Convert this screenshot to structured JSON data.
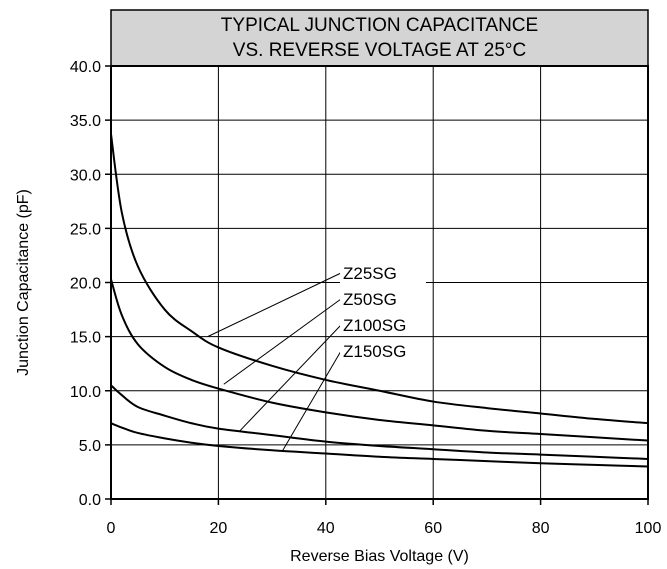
{
  "chart_data": {
    "type": "line",
    "title_lines": [
      "TYPICAL JUNCTION CAPACITANCE",
      "VS. REVERSE VOLTAGE AT 25°C"
    ],
    "xlabel": "Reverse Bias Voltage (V)",
    "ylabel": "Junction Capacitance (pF)",
    "xlim": [
      0,
      100
    ],
    "ylim": [
      0,
      40
    ],
    "x_ticks": [
      0,
      20,
      40,
      60,
      80,
      100
    ],
    "x_tick_labels": [
      "0",
      "20",
      "40",
      "60",
      "80",
      "100"
    ],
    "y_ticks": [
      0,
      5,
      10,
      15,
      20,
      25,
      30,
      35,
      40
    ],
    "y_tick_labels": [
      "0.0",
      "5.0",
      "10.0",
      "15.0",
      "20.0",
      "25.0",
      "30.0",
      "35.0",
      "40.0"
    ],
    "grid": true,
    "x": [
      0,
      2,
      5,
      10,
      15,
      20,
      30,
      40,
      50,
      60,
      70,
      80,
      90,
      100
    ],
    "series": [
      {
        "name": "Z25SG",
        "values": [
          33.7,
          26.5,
          21.5,
          17.5,
          15.5,
          14.0,
          12.3,
          11.0,
          10.0,
          9.0,
          8.4,
          7.9,
          7.4,
          7.0
        ]
      },
      {
        "name": "Z50SG",
        "values": [
          20.3,
          17.0,
          14.3,
          12.2,
          11.0,
          10.2,
          8.9,
          8.0,
          7.3,
          6.8,
          6.3,
          6.0,
          5.7,
          5.4
        ]
      },
      {
        "name": "Z100SG",
        "values": [
          10.5,
          9.6,
          8.5,
          7.7,
          7.0,
          6.5,
          5.9,
          5.3,
          4.9,
          4.6,
          4.3,
          4.1,
          3.9,
          3.7
        ]
      },
      {
        "name": "Z150SG",
        "values": [
          7.0,
          6.6,
          6.1,
          5.6,
          5.2,
          4.9,
          4.5,
          4.2,
          3.9,
          3.7,
          3.5,
          3.3,
          3.15,
          3.0
        ]
      }
    ],
    "annotations": [
      {
        "series": "Z25SG",
        "x": 18,
        "y": 15.0
      },
      {
        "series": "Z50SG",
        "x": 21,
        "y": 10.6
      },
      {
        "series": "Z100SG",
        "x": 24,
        "y": 6.3
      },
      {
        "series": "Z150SG",
        "x": 32,
        "y": 4.5
      }
    ]
  }
}
